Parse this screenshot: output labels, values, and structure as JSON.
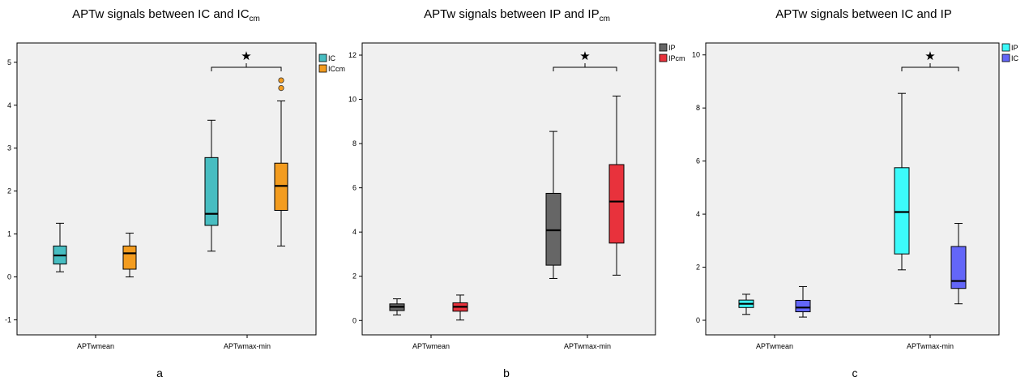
{
  "chart_data": [
    {
      "type": "box",
      "title": "APTw signals between IC and IC",
      "title_subscript": "cm",
      "panel_label": "a",
      "categories": [
        "APTwmean",
        "APTwmax-min"
      ],
      "ylim": [
        -1.35,
        5.45
      ],
      "yticks": [
        -1,
        0,
        1,
        2,
        3,
        4,
        5
      ],
      "legend_position": "top-right",
      "significance": {
        "category": "APTwmax-min",
        "marker": "★"
      },
      "series": [
        {
          "name": "IC",
          "color": "#47BDC1",
          "boxes": [
            {
              "min": 0.12,
              "q1": 0.3,
              "median": 0.5,
              "q3": 0.72,
              "max": 1.25,
              "outliers": []
            },
            {
              "min": 0.6,
              "q1": 1.2,
              "median": 1.47,
              "q3": 2.78,
              "max": 3.65,
              "outliers": []
            }
          ]
        },
        {
          "name": "ICcm",
          "color": "#F39C1F",
          "boxes": [
            {
              "min": 0.0,
              "q1": 0.18,
              "median": 0.55,
              "q3": 0.72,
              "max": 1.02,
              "outliers": []
            },
            {
              "min": 0.72,
              "q1": 1.55,
              "median": 2.12,
              "q3": 2.65,
              "max": 4.1,
              "outliers": [
                4.4,
                4.58
              ]
            }
          ]
        }
      ]
    },
    {
      "type": "box",
      "title": "APTw signals between IP and IP",
      "title_subscript": "cm",
      "panel_label": "b",
      "categories": [
        "APTwmean",
        "APTwmax-min"
      ],
      "ylim": [
        -0.65,
        12.55
      ],
      "yticks": [
        0,
        2,
        4,
        6,
        8,
        10,
        12
      ],
      "legend_position": "top-right",
      "significance": {
        "category": "APTwmax-min",
        "marker": "★"
      },
      "series": [
        {
          "name": "IP",
          "color": "#666666",
          "boxes": [
            {
              "min": 0.25,
              "q1": 0.45,
              "median": 0.62,
              "q3": 0.75,
              "max": 0.98,
              "outliers": []
            },
            {
              "min": 1.9,
              "q1": 2.5,
              "median": 4.08,
              "q3": 5.75,
              "max": 8.55,
              "outliers": []
            }
          ]
        },
        {
          "name": "IPcm",
          "color": "#E8323C",
          "boxes": [
            {
              "min": 0.02,
              "q1": 0.42,
              "median": 0.62,
              "q3": 0.8,
              "max": 1.15,
              "outliers": []
            },
            {
              "min": 2.05,
              "q1": 3.5,
              "median": 5.38,
              "q3": 7.05,
              "max": 10.15,
              "outliers": []
            }
          ]
        }
      ]
    },
    {
      "type": "box",
      "title": "APTw signals between IC and IP",
      "title_subscript": "",
      "panel_label": "c",
      "categories": [
        "APTwmean",
        "APTwmax-min"
      ],
      "ylim": [
        -0.55,
        10.45
      ],
      "yticks": [
        0,
        2,
        4,
        6,
        8,
        10
      ],
      "legend_position": "top-right",
      "significance": {
        "category": "APTwmax-min",
        "marker": "★"
      },
      "series": [
        {
          "name": "IP",
          "color": "#3CFAFA",
          "boxes": [
            {
              "min": 0.22,
              "q1": 0.48,
              "median": 0.62,
              "q3": 0.76,
              "max": 0.98,
              "outliers": []
            },
            {
              "min": 1.9,
              "q1": 2.5,
              "median": 4.08,
              "q3": 5.75,
              "max": 8.55,
              "outliers": []
            }
          ]
        },
        {
          "name": "IC",
          "color": "#6366F8",
          "boxes": [
            {
              "min": 0.12,
              "q1": 0.32,
              "median": 0.48,
              "q3": 0.75,
              "max": 1.27,
              "outliers": []
            },
            {
              "min": 0.62,
              "q1": 1.2,
              "median": 1.48,
              "q3": 2.78,
              "max": 3.65,
              "outliers": []
            }
          ]
        }
      ]
    }
  ]
}
